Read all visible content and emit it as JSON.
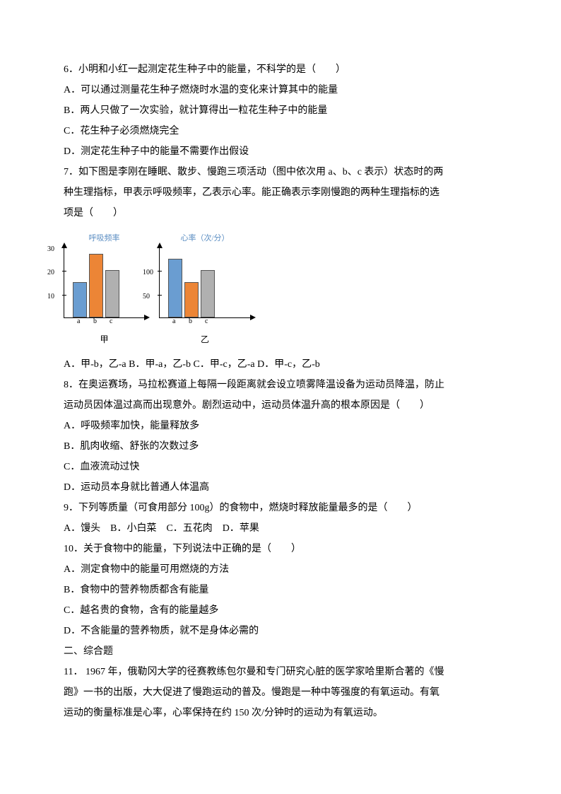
{
  "q6": {
    "stem": "6．小明和小红一起测定花生种子中的能量，不科学的是（　　）",
    "a": "A．可以通过测量花生种子燃烧时水温的变化来计算其中的能量",
    "b": "B．两人只做了一次实验，就计算得出一粒花生种子中的能量",
    "c": "C．花生种子必须燃烧完全",
    "d": "D．测定花生种子中的能量不需要作出假设"
  },
  "q7": {
    "stem1": "7．如下图是李刚在睡眠、散步、慢跑三项活动（图中依次用 a、b、c 表示）状态时的两",
    "stem2": "种生理指标，甲表示呼吸频率，乙表示心率。能正确表示李刚慢跑的两种生理指标的选",
    "stem3": "项是（　　）",
    "options": "A．甲-b，乙-a  B．甲-a，乙-b  C．甲-c，乙-a  D．甲-c，乙-b"
  },
  "chart1": {
    "title": "呼吸频率",
    "name": "甲",
    "ylim": 30,
    "ytick_step": 10,
    "yticks": [
      "10",
      "20",
      "30"
    ],
    "categories": [
      "a",
      "b",
      "c"
    ],
    "values": [
      15,
      27,
      20
    ],
    "bar_colors": [
      "#6a9dd1",
      "#ec8536",
      "#b0b0b0"
    ]
  },
  "chart2": {
    "title": "心率（次/分）",
    "name": "乙",
    "ylim": 150,
    "ytick_step": 50,
    "yticks": [
      "50",
      "100"
    ],
    "categories": [
      "a",
      "b",
      "c"
    ],
    "values": [
      125,
      75,
      100
    ],
    "bar_colors": [
      "#6a9dd1",
      "#ec8536",
      "#b0b0b0"
    ]
  },
  "q8": {
    "stem1": "8．在奥运赛场，马拉松赛道上每隔一段距离就会设立喷雾降温设备为运动员降温，防止",
    "stem2": "运动员因体温过高而出现意外。剧烈运动中，运动员体温升高的根本原因是（　　）",
    "a": "A．呼吸频率加快，能量释放多",
    "b": "B．肌肉收缩、舒张的次数过多",
    "c": "C．血液流动过快",
    "d": "D．运动员本身就比普通人体温高"
  },
  "q9": {
    "stem": "9．下列等质量（可食用部分 100g）的食物中，燃烧时释放能量最多的是（　　）",
    "options": "A．馒头　B．小白菜　C．五花肉　D．苹果"
  },
  "q10": {
    "stem": "10．关于食物中的能量，下列说法中正确的是（　　）",
    "a": "A．测定食物中的能量可用燃烧的方法",
    "b": "B．食物中的营养物质都含有能量",
    "c": "C．越名贵的食物，含有的能量越多",
    "d": "D．不含能量的营养物质，就不是身体必需的"
  },
  "section2": "二、综合题",
  "q11": {
    "line1": "11． 1967 年，俄勒冈大学的径赛教练包尔曼和专门研究心脏的医学家哈里斯合著的《慢",
    "line2": "跑》一书的出版，大大促进了慢跑运动的普及。慢跑是一种中等强度的有氧运动。有氧",
    "line3": "运动的衡量标准是心率，心率保持在约 150 次/分钟时的运动为有氧运动。"
  }
}
